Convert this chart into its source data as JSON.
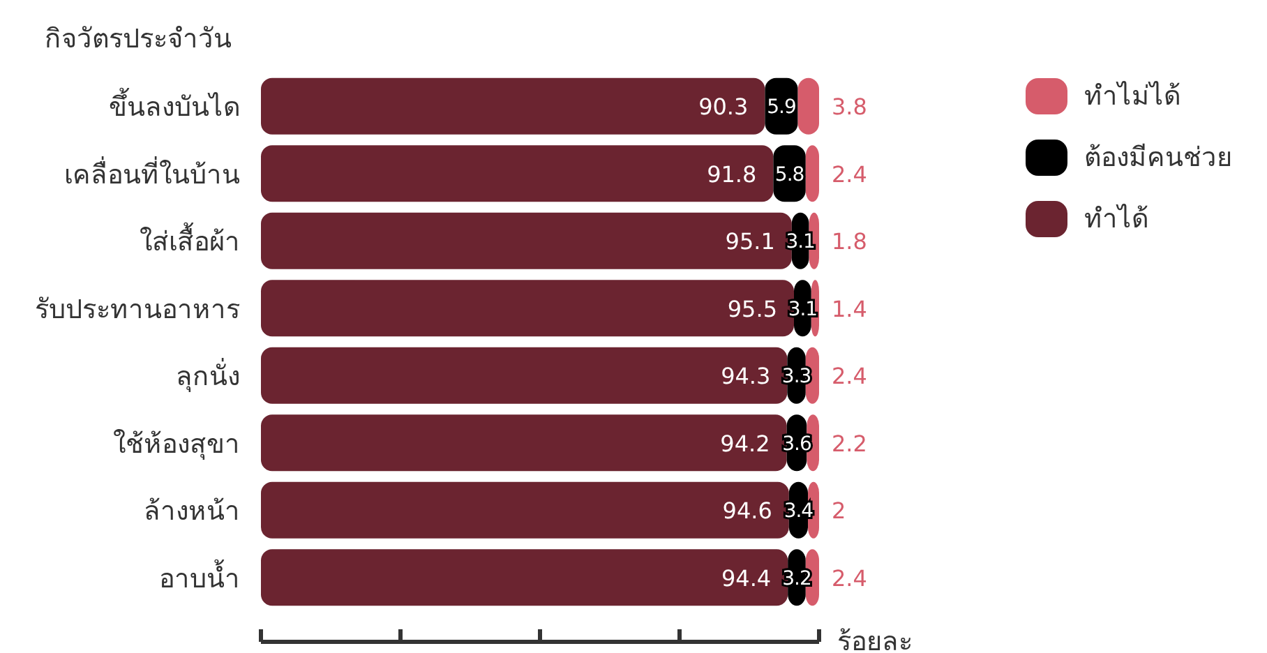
{
  "chart_data": {
    "type": "bar",
    "orientation": "horizontal",
    "stacked": true,
    "ylabel": "กิจวัตรประจำวัน",
    "xlabel": "ร้อยละ",
    "categories": [
      "ขึ้นลงบันได",
      "เคลื่อนที่ในบ้าน",
      "ใส่เสื้อผ้า",
      "รับประทานอาหาร",
      "ลุกนั่ง",
      "ใช้ห้องสุขา",
      "ล้างหน้า",
      "อาบน้ำ"
    ],
    "series": [
      {
        "name": "ทำได้",
        "color": "#6b2430",
        "values": [
          90.3,
          91.8,
          95.1,
          95.5,
          94.3,
          94.2,
          94.6,
          94.4
        ]
      },
      {
        "name": "ต้องมีคนช่วย",
        "color": "#000000",
        "values": [
          5.9,
          5.8,
          3.1,
          3.1,
          3.3,
          3.6,
          3.4,
          3.2
        ]
      },
      {
        "name": "ทำไม่ได้",
        "color": "#d65c6b",
        "values": [
          3.8,
          2.4,
          1.8,
          1.4,
          2.4,
          2.2,
          2,
          2.4
        ]
      }
    ],
    "xlim": [
      0,
      100
    ],
    "xticks": [
      {
        "value": 0,
        "label": null
      },
      {
        "value": 25,
        "label": null
      },
      {
        "value": 50,
        "label": null
      },
      {
        "value": 75,
        "label": null
      },
      {
        "value": 100,
        "label": null
      }
    ],
    "data_labels": true,
    "legend": "top right",
    "grid": false
  }
}
